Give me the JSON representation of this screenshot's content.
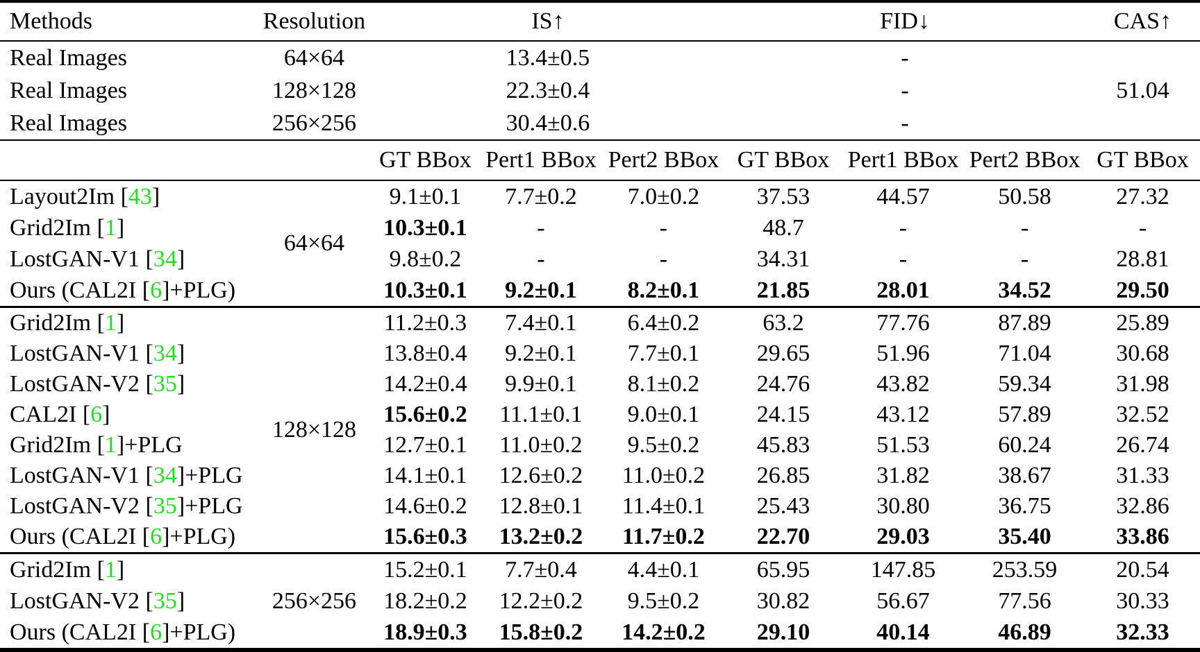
{
  "table": {
    "colors": {
      "citation_green": "#22dd22",
      "text": "#000000",
      "background": "#ffffff"
    },
    "header": {
      "methods": "Methods",
      "resolution": "Resolution",
      "is": "IS↑",
      "fid": "FID↓",
      "cas": "CAS↑"
    },
    "subheader": [
      "GT BBox",
      "Pert1 BBox",
      "Pert2 BBox",
      "GT BBox",
      "Pert1 BBox",
      "Pert2 BBox",
      "GT BBox"
    ],
    "real_images": [
      {
        "method": "Real Images",
        "resolution": "64×64",
        "is": "13.4±0.5",
        "fid": "-",
        "cas": ""
      },
      {
        "method": "Real Images",
        "resolution": "128×128",
        "is": "22.3±0.4",
        "fid": "-",
        "cas": "51.04"
      },
      {
        "method": "Real Images",
        "resolution": "256×256",
        "is": "30.4±0.6",
        "fid": "-",
        "cas": ""
      }
    ],
    "groups": [
      {
        "resolution": "64×64",
        "rows": [
          {
            "pre": "Layout2Im [",
            "cite": "43",
            "post": "]",
            "cells": [
              {
                "v": "9.1±0.1"
              },
              {
                "v": "7.7±0.2"
              },
              {
                "v": "7.0±0.2"
              },
              {
                "v": "37.53"
              },
              {
                "v": "44.57"
              },
              {
                "v": "50.58"
              },
              {
                "v": "27.32"
              }
            ]
          },
          {
            "pre": "Grid2Im [",
            "cite": "1",
            "post": "]",
            "cells": [
              {
                "v": "10.3±0.1",
                "b": true
              },
              {
                "v": "-"
              },
              {
                "v": "-"
              },
              {
                "v": "48.7"
              },
              {
                "v": "-"
              },
              {
                "v": "-"
              },
              {
                "v": "-"
              }
            ]
          },
          {
            "pre": "LostGAN-V1 [",
            "cite": "34",
            "post": "]",
            "cells": [
              {
                "v": "9.8±0.2"
              },
              {
                "v": "-"
              },
              {
                "v": "-"
              },
              {
                "v": "34.31"
              },
              {
                "v": "-"
              },
              {
                "v": "-"
              },
              {
                "v": "28.81"
              }
            ]
          },
          {
            "pre": "Ours (CAL2I [",
            "cite": "6",
            "post": "]+PLG)",
            "cells": [
              {
                "v": "10.3±0.1",
                "b": true
              },
              {
                "v": "9.2±0.1",
                "b": true
              },
              {
                "v": "8.2±0.1",
                "b": true
              },
              {
                "v": "21.85",
                "b": true
              },
              {
                "v": "28.01",
                "b": true
              },
              {
                "v": "34.52",
                "b": true
              },
              {
                "v": "29.50",
                "b": true
              }
            ]
          }
        ]
      },
      {
        "resolution": "128×128",
        "rows": [
          {
            "pre": "Grid2Im [",
            "cite": "1",
            "post": "]",
            "cells": [
              {
                "v": "11.2±0.3"
              },
              {
                "v": "7.4±0.1"
              },
              {
                "v": "6.4±0.2"
              },
              {
                "v": "63.2"
              },
              {
                "v": "77.76"
              },
              {
                "v": "87.89"
              },
              {
                "v": "25.89"
              }
            ]
          },
          {
            "pre": "LostGAN-V1 [",
            "cite": "34",
            "post": "]",
            "cells": [
              {
                "v": "13.8±0.4"
              },
              {
                "v": "9.2±0.1"
              },
              {
                "v": "7.7±0.1"
              },
              {
                "v": "29.65"
              },
              {
                "v": "51.96"
              },
              {
                "v": "71.04"
              },
              {
                "v": "30.68"
              }
            ]
          },
          {
            "pre": "LostGAN-V2 [",
            "cite": "35",
            "post": "]",
            "cells": [
              {
                "v": "14.2±0.4"
              },
              {
                "v": "9.9±0.1"
              },
              {
                "v": "8.1±0.2"
              },
              {
                "v": "24.76"
              },
              {
                "v": "43.82"
              },
              {
                "v": "59.34"
              },
              {
                "v": "31.98"
              }
            ]
          },
          {
            "pre": "CAL2I [",
            "cite": "6",
            "post": "]",
            "cells": [
              {
                "v": "15.6±0.2",
                "b": true
              },
              {
                "v": "11.1±0.1"
              },
              {
                "v": "9.0±0.1"
              },
              {
                "v": "24.15"
              },
              {
                "v": "43.12"
              },
              {
                "v": "57.89"
              },
              {
                "v": "32.52"
              }
            ]
          },
          {
            "pre": "Grid2Im [",
            "cite": "1",
            "post": "]+PLG",
            "cells": [
              {
                "v": "12.7±0.1"
              },
              {
                "v": "11.0±0.2"
              },
              {
                "v": "9.5±0.2"
              },
              {
                "v": "45.83"
              },
              {
                "v": "51.53"
              },
              {
                "v": "60.24"
              },
              {
                "v": "26.74"
              }
            ]
          },
          {
            "pre": "LostGAN-V1 [",
            "cite": "34",
            "post": "]+PLG",
            "cells": [
              {
                "v": "14.1±0.1"
              },
              {
                "v": "12.6±0.2"
              },
              {
                "v": "11.0±0.2"
              },
              {
                "v": "26.85"
              },
              {
                "v": "31.82"
              },
              {
                "v": "38.67"
              },
              {
                "v": "31.33"
              }
            ]
          },
          {
            "pre": "LostGAN-V2 [",
            "cite": "35",
            "post": "]+PLG",
            "cells": [
              {
                "v": "14.6±0.2"
              },
              {
                "v": "12.8±0.1"
              },
              {
                "v": "11.4±0.1"
              },
              {
                "v": "25.43"
              },
              {
                "v": "30.80"
              },
              {
                "v": "36.75"
              },
              {
                "v": "32.86"
              }
            ]
          },
          {
            "pre": "Ours (CAL2I [",
            "cite": "6",
            "post": "]+PLG)",
            "cells": [
              {
                "v": "15.6±0.3",
                "b": true
              },
              {
                "v": "13.2±0.2",
                "b": true
              },
              {
                "v": "11.7±0.2",
                "b": true
              },
              {
                "v": "22.70",
                "b": true
              },
              {
                "v": "29.03",
                "b": true
              },
              {
                "v": "35.40",
                "b": true
              },
              {
                "v": "33.86",
                "b": true
              }
            ]
          }
        ]
      },
      {
        "resolution": "256×256",
        "rows": [
          {
            "pre": "Grid2Im [",
            "cite": "1",
            "post": "]",
            "cells": [
              {
                "v": "15.2±0.1"
              },
              {
                "v": "7.7±0.4"
              },
              {
                "v": "4.4±0.1"
              },
              {
                "v": "65.95"
              },
              {
                "v": "147.85"
              },
              {
                "v": "253.59"
              },
              {
                "v": "20.54"
              }
            ]
          },
          {
            "pre": "LostGAN-V2 [",
            "cite": "35",
            "post": "]",
            "cells": [
              {
                "v": "18.2±0.2"
              },
              {
                "v": "12.2±0.2"
              },
              {
                "v": "9.5±0.2"
              },
              {
                "v": "30.82"
              },
              {
                "v": "56.67"
              },
              {
                "v": "77.56"
              },
              {
                "v": "30.33"
              }
            ]
          },
          {
            "pre": "Ours (CAL2I [",
            "cite": "6",
            "post": "]+PLG)",
            "cells": [
              {
                "v": "18.9±0.3",
                "b": true
              },
              {
                "v": "15.8±0.2",
                "b": true
              },
              {
                "v": "14.2±0.2",
                "b": true
              },
              {
                "v": "29.10",
                "b": true
              },
              {
                "v": "40.14",
                "b": true
              },
              {
                "v": "46.89",
                "b": true
              },
              {
                "v": "32.33",
                "b": true
              }
            ]
          }
        ]
      }
    ]
  }
}
